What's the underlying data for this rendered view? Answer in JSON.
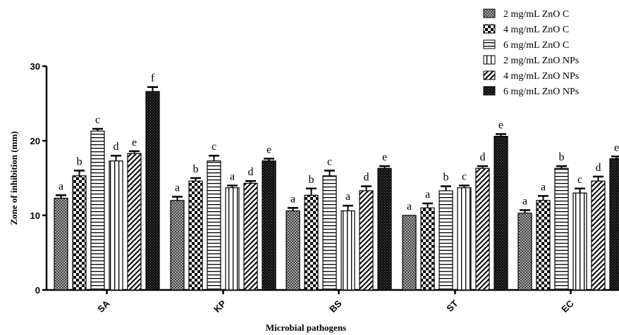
{
  "chart_data": {
    "type": "bar",
    "categories": [
      "SA",
      "KP",
      "BS",
      "ST",
      "EC"
    ],
    "xlabel": "Microbial pathogens",
    "ylabel": "Zone of inhibition (mm)",
    "ylim": [
      0,
      30
    ],
    "yticks": [
      0,
      10,
      20,
      30
    ],
    "legend_position": "top-right",
    "series": [
      {
        "name": "2 mg/mL ZnO C",
        "pattern": "checker-fine",
        "values": [
          12.3,
          12.0,
          10.6,
          10.0,
          10.3
        ],
        "errors": [
          0.4,
          0.5,
          0.4,
          0.0,
          0.4
        ],
        "letters": [
          "a",
          "a",
          "a",
          "a",
          "a"
        ]
      },
      {
        "name": "4 mg/mL ZnO C",
        "pattern": "checker",
        "values": [
          15.3,
          14.6,
          12.7,
          11.0,
          12.0
        ],
        "errors": [
          0.7,
          0.4,
          0.9,
          0.6,
          0.6
        ],
        "letters": [
          "b",
          "b",
          "b",
          "a",
          "a"
        ]
      },
      {
        "name": "6 mg/mL ZnO C",
        "pattern": "horizontal",
        "values": [
          21.3,
          17.3,
          15.3,
          13.3,
          16.3
        ],
        "errors": [
          0.3,
          0.7,
          0.7,
          0.6,
          0.3
        ],
        "letters": [
          "c",
          "c",
          "c",
          "b",
          "b"
        ]
      },
      {
        "name": "2 mg/mL ZnO NPs",
        "pattern": "vertical",
        "values": [
          17.3,
          13.7,
          10.6,
          13.7,
          13.0
        ],
        "errors": [
          0.7,
          0.3,
          0.7,
          0.3,
          0.6
        ],
        "letters": [
          "d",
          "a",
          "a",
          "c",
          "c"
        ]
      },
      {
        "name": "4 mg/mL ZnO NPs",
        "pattern": "diagonal",
        "values": [
          18.3,
          14.3,
          13.3,
          16.3,
          14.6
        ],
        "errors": [
          0.3,
          0.3,
          0.6,
          0.3,
          0.6
        ],
        "letters": [
          "e",
          "d",
          "d",
          "d",
          "d"
        ]
      },
      {
        "name": "6 mg/mL ZnO NPs",
        "pattern": "dark-grid",
        "values": [
          26.6,
          17.3,
          16.3,
          20.6,
          17.6
        ],
        "errors": [
          0.6,
          0.3,
          0.3,
          0.3,
          0.3
        ],
        "letters": [
          "f",
          "e",
          "e",
          "e",
          "e"
        ]
      }
    ]
  }
}
